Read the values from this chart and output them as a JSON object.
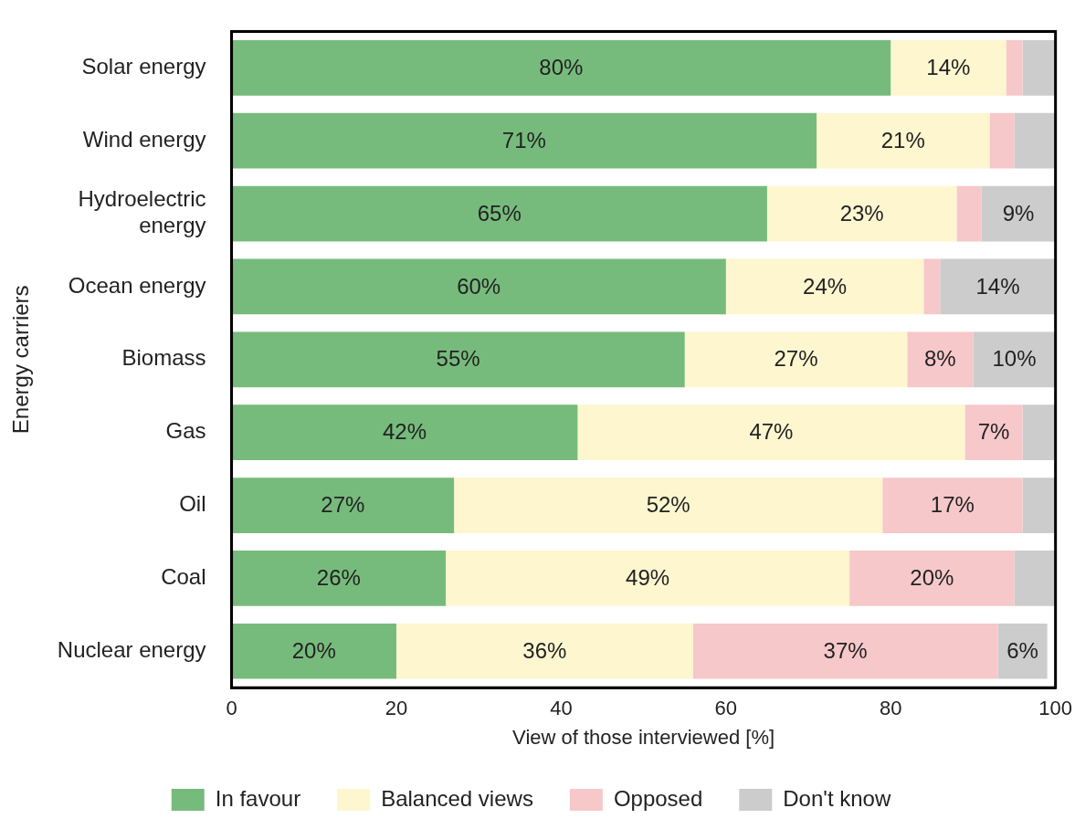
{
  "chart_data": {
    "type": "bar",
    "orientation": "horizontal",
    "stacked": true,
    "categories": [
      "Solar energy",
      "Wind energy",
      "Hydroelectric energy",
      "Ocean energy",
      "Biomass",
      "Gas",
      "Oil",
      "Coal",
      "Nuclear energy"
    ],
    "xlabel": "View of those interviewed [%]",
    "ylabel": "Energy carriers",
    "xlim": [
      0,
      100
    ],
    "xticks": [
      0,
      20,
      40,
      60,
      80,
      100
    ],
    "grid": false,
    "legend": "bottom",
    "series": [
      {
        "name": "In favour",
        "color": "#77bb7c",
        "values": [
          80,
          71,
          65,
          60,
          55,
          42,
          27,
          26,
          20
        ],
        "value_labels": [
          "80%",
          "71%",
          "65%",
          "60%",
          "55%",
          "42%",
          "27%",
          "26%",
          "20%"
        ]
      },
      {
        "name": "Balanced views",
        "color": "#fdf6cf",
        "values": [
          14,
          21,
          23,
          24,
          27,
          47,
          52,
          49,
          36
        ],
        "value_labels": [
          "14%",
          "21%",
          "23%",
          "24%",
          "27%",
          "47%",
          "52%",
          "49%",
          "36%"
        ]
      },
      {
        "name": "Opposed",
        "color": "#f6c8ca",
        "values": [
          2,
          3,
          3,
          2,
          8,
          7,
          17,
          20,
          37
        ],
        "value_labels": [
          null,
          null,
          null,
          null,
          "8%",
          "7%",
          "17%",
          "20%",
          "37%"
        ]
      },
      {
        "name": "Don't know",
        "color": "#cccccc",
        "values": [
          4,
          5,
          9,
          14,
          10,
          4,
          4,
          5,
          6
        ],
        "value_labels": [
          null,
          null,
          "9%",
          "14%",
          "10%",
          null,
          null,
          null,
          "6%"
        ]
      }
    ]
  }
}
